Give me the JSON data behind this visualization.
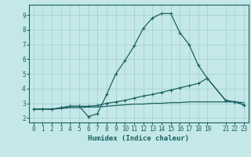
{
  "title": "",
  "xlabel": "Humidex (Indice chaleur)",
  "ylabel": "",
  "bg_color": "#c4e8e8",
  "grid_color": "#a8d0d0",
  "line_color": "#1a6060",
  "axis_color": "#1a6060",
  "xlim": [
    -0.5,
    23.5
  ],
  "ylim": [
    1.7,
    9.7
  ],
  "xticks": [
    0,
    1,
    2,
    3,
    4,
    5,
    6,
    7,
    8,
    9,
    10,
    11,
    12,
    13,
    14,
    15,
    16,
    17,
    18,
    19,
    21,
    22,
    23
  ],
  "yticks": [
    2,
    3,
    4,
    5,
    6,
    7,
    8,
    9
  ],
  "series1_x": [
    0,
    1,
    2,
    3,
    4,
    5,
    6,
    7,
    8,
    9,
    10,
    11,
    12,
    13,
    14,
    15,
    16,
    17,
    18,
    19,
    21,
    22,
    23
  ],
  "series1_y": [
    2.6,
    2.6,
    2.6,
    2.7,
    2.8,
    2.8,
    2.1,
    2.3,
    3.6,
    5.0,
    5.9,
    6.9,
    8.1,
    8.8,
    9.1,
    9.1,
    7.8,
    7.0,
    5.6,
    4.7,
    3.2,
    3.1,
    2.9
  ],
  "series2_x": [
    0,
    1,
    2,
    3,
    4,
    5,
    6,
    7,
    8,
    9,
    10,
    11,
    12,
    13,
    14,
    15,
    16,
    17,
    18,
    19,
    21,
    22,
    23
  ],
  "series2_y": [
    2.6,
    2.6,
    2.6,
    2.7,
    2.8,
    2.8,
    2.8,
    2.85,
    3.0,
    3.1,
    3.2,
    3.35,
    3.5,
    3.6,
    3.75,
    3.9,
    4.05,
    4.2,
    4.35,
    4.7,
    3.2,
    3.1,
    2.9
  ],
  "series3_x": [
    0,
    1,
    2,
    3,
    4,
    5,
    6,
    7,
    8,
    9,
    10,
    11,
    12,
    13,
    14,
    15,
    16,
    17,
    18,
    19,
    21,
    22,
    23
  ],
  "series3_y": [
    2.6,
    2.6,
    2.6,
    2.65,
    2.7,
    2.7,
    2.75,
    2.75,
    2.8,
    2.85,
    2.9,
    2.95,
    2.95,
    3.0,
    3.0,
    3.05,
    3.05,
    3.1,
    3.1,
    3.1,
    3.1,
    3.1,
    3.05
  ],
  "tick_fontsize": 5.5,
  "xlabel_fontsize": 6.5
}
